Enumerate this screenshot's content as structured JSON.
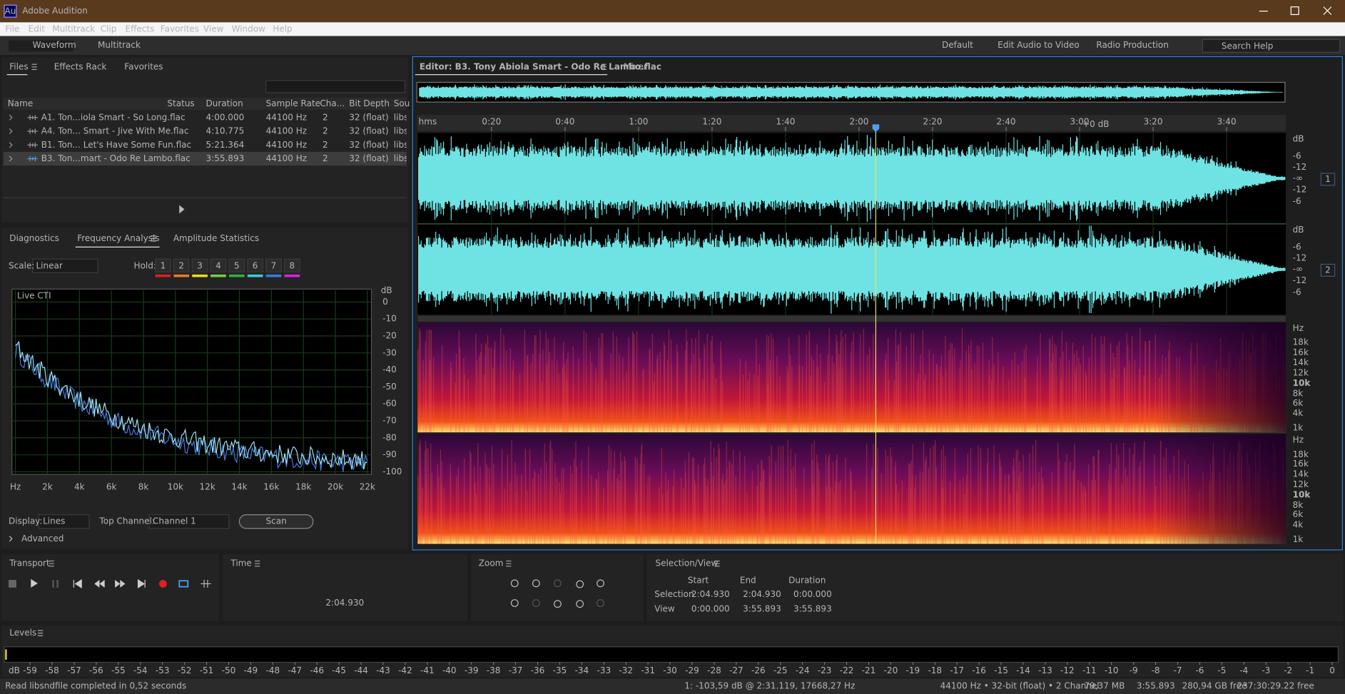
{
  "title_bar": {
    "icon": "Au",
    "title": "Adobe Audition"
  },
  "menu": [
    "File",
    "Edit",
    "Multitrack",
    "Clip",
    "Effects",
    "Favorites",
    "View",
    "Window",
    "Help"
  ],
  "toolbar": {
    "modes": [
      "Waveform",
      "Multitrack"
    ],
    "workspaces": [
      "Default",
      "Edit Audio to Video",
      "Radio Production"
    ],
    "search": "Search Help"
  },
  "files_panel": {
    "tabs": [
      "Files",
      "Effects Rack",
      "Favorites"
    ],
    "columns": [
      "Name",
      "Status",
      "Duration",
      "Sample Rate",
      "Cha...",
      "Bit Depth",
      "Sou"
    ],
    "rows": [
      {
        "name": "A1. Ton...iola Smart - So Long.flac",
        "duration": "4:00.000",
        "sample_rate": "44100 Hz",
        "channels": 2,
        "bit_depth": "32 (float)",
        "source": "libs"
      },
      {
        "name": "A4. Ton... Smart - Jive With Me.flac",
        "duration": "4:10.775",
        "sample_rate": "44100 Hz",
        "channels": 2,
        "bit_depth": "32 (float)",
        "source": "libs"
      },
      {
        "name": "B1. Ton... Let's Have Some Fun.flac",
        "duration": "5:21.364",
        "sample_rate": "44100 Hz",
        "channels": 2,
        "bit_depth": "32 (float)",
        "source": "libs"
      },
      {
        "name": "B3. Ton...mart - Odo Re Lambo.flac",
        "duration": "3:55.893",
        "sample_rate": "44100 Hz",
        "channels": 2,
        "bit_depth": "32 (float)",
        "source": "libs"
      }
    ]
  },
  "analysis_panel": {
    "tabs": [
      "Diagnostics",
      "Frequency Analysis",
      "Amplitude Statistics"
    ],
    "scale_label": "Scale:",
    "scale": "Linear",
    "hold_label": "Hold:",
    "hold": [
      1,
      2,
      3,
      4,
      5,
      6,
      7,
      8
    ],
    "hold_colors": [
      "#e02020",
      "#f07820",
      "#e8e020",
      "#70d040",
      "#30b040",
      "#30d0e0",
      "#3080e0",
      "#e020e0"
    ],
    "plot": {
      "label": "Live CTI",
      "y_unit": "dB",
      "yticks": [
        0,
        -10,
        -20,
        -30,
        -40,
        -50,
        -60,
        -70,
        -80,
        -90,
        -100
      ],
      "xticks": [
        "Hz",
        "2k",
        "4k",
        "6k",
        "8k",
        "10k",
        "12k",
        "14k",
        "16k",
        "18k",
        "20k",
        "22k"
      ]
    },
    "display_label": "Display:",
    "display": "Lines",
    "top_channel_label": "Top Channel:",
    "top_channel": "Channel 1",
    "scan": "Scan",
    "advanced": "Advanced"
  },
  "editor": {
    "tab": "Editor: B3. Tony Abiola Smart - Odo Re Lambo.flac",
    "mixer": "Mixer",
    "ruler_unit": "hms",
    "time_ticks": [
      "0:20",
      "0:40",
      "1:00",
      "1:20",
      "1:40",
      "2:00",
      "2:20",
      "2:40",
      "3:00",
      "3:20",
      "3:40"
    ],
    "gain": "+0 dB",
    "channels": [
      1,
      2
    ],
    "db_ruler": [
      "dB",
      "-6",
      "-12",
      "-∞",
      "-12",
      "-6"
    ],
    "hz_ruler": [
      "Hz",
      "18k",
      "16k",
      "14k",
      "12k",
      "10k",
      "8k",
      "6k",
      "4k",
      "1k"
    ]
  },
  "transport": {
    "title": "Transport"
  },
  "time": {
    "title": "Time",
    "value": "2:04.930"
  },
  "zoom": {
    "title": "Zoom"
  },
  "selection_view": {
    "title": "Selection/View",
    "columns": [
      "Start",
      "End",
      "Duration"
    ],
    "rows": [
      [
        "Selection",
        "2:04.930",
        "2:04.930",
        "0:00.000"
      ],
      [
        "View",
        "0:00.000",
        "3:55.893",
        "3:55.893"
      ]
    ]
  },
  "levels": {
    "title": "Levels",
    "unit": "dB",
    "ticks": [
      -59,
      -58,
      -57,
      -56,
      -55,
      -54,
      -53,
      -52,
      -51,
      -50,
      -49,
      -48,
      -47,
      -46,
      -45,
      -44,
      -43,
      -42,
      -41,
      -40,
      -39,
      -38,
      -37,
      -36,
      -35,
      -34,
      -33,
      -32,
      -31,
      -30,
      -29,
      -28,
      -27,
      -26,
      -25,
      -24,
      -23,
      -22,
      -21,
      -20,
      -19,
      -18,
      -17,
      -16,
      -15,
      -14,
      -13,
      -12,
      -11,
      -10,
      -9,
      -8,
      -7,
      -6,
      -5,
      -4,
      -3,
      -2,
      -1,
      0
    ]
  },
  "status_bar": {
    "message": "Read libsndfile completed in 0,52 seconds",
    "cursor": "1: -103,59 dB @ 2:31.119, 17668,27 Hz",
    "format": "44100 Hz • 32-bit (float) • 2 Channel",
    "size": "79,37 MB",
    "duration": "3:55.893",
    "disk_free": "280,94 GB free",
    "time_free": "237:30:29.22 free"
  }
}
